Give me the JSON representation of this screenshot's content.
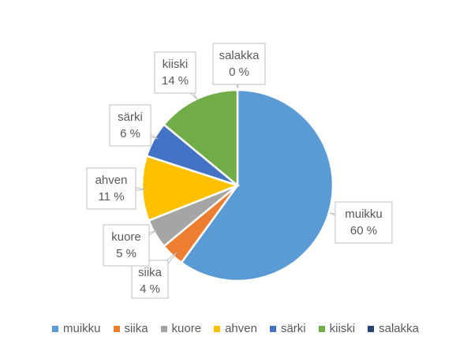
{
  "chart_data": {
    "type": "pie",
    "title": "",
    "categories": [
      "muikku",
      "siika",
      "kuore",
      "ahven",
      "särki",
      "kiiski",
      "salakka"
    ],
    "values": [
      60,
      4,
      5,
      11,
      6,
      14,
      0
    ],
    "labels": [
      "60 %",
      "4 %",
      "5 %",
      "11 %",
      "6 %",
      "14 %",
      "0 %"
    ],
    "colors": [
      "#5B9BD5",
      "#ED7D31",
      "#A5A5A5",
      "#FFC000",
      "#4472C4",
      "#70AD47",
      "#264478"
    ],
    "legend_position": "bottom",
    "start_angle_deg": 0,
    "direction": "clockwise"
  }
}
